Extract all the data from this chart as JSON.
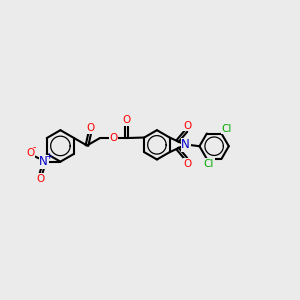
{
  "background_color": "#ebebeb",
  "figsize": [
    3.0,
    3.0
  ],
  "dpi": 100,
  "atom_colors": {
    "O": "#ff0000",
    "N": "#0000cc",
    "Cl": "#00aa00",
    "C": "#000000"
  },
  "bond_color": "#000000",
  "bond_lw": 1.5,
  "font_size": 7.5
}
